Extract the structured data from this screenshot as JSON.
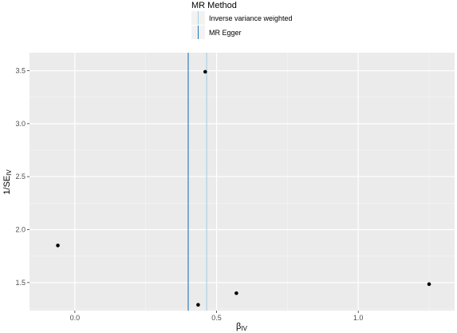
{
  "chart_data": {
    "type": "scatter",
    "xlabel": "β",
    "xlabel_sub": "IV",
    "ylabel": "1/SE",
    "ylabel_sub": "IV",
    "xlim": [
      -0.16,
      1.34
    ],
    "ylim": [
      1.235,
      3.67
    ],
    "x_ticks": [
      0.0,
      0.5,
      1.0
    ],
    "x_tick_labels": [
      "0.0",
      "0.5",
      "1.0"
    ],
    "y_ticks": [
      1.5,
      2.0,
      2.5,
      3.0,
      3.5
    ],
    "y_tick_labels": [
      "1.5",
      "2.0",
      "2.5",
      "3.0",
      "3.5"
    ],
    "grid": true,
    "points": [
      {
        "x": -0.06,
        "y": 1.85
      },
      {
        "x": 0.435,
        "y": 1.29
      },
      {
        "x": 0.46,
        "y": 3.49
      },
      {
        "x": 0.57,
        "y": 1.4
      },
      {
        "x": 1.25,
        "y": 1.485
      }
    ],
    "lines": [
      {
        "name": "Inverse variance weighted",
        "x": 0.465,
        "color": "#a6cee3"
      },
      {
        "name": "MR Egger",
        "x": 0.4,
        "color": "#1f78b4"
      }
    ],
    "legend": {
      "title": "MR Method",
      "placement": "top",
      "entries": [
        "Inverse variance weighted",
        "MR Egger"
      ]
    }
  }
}
